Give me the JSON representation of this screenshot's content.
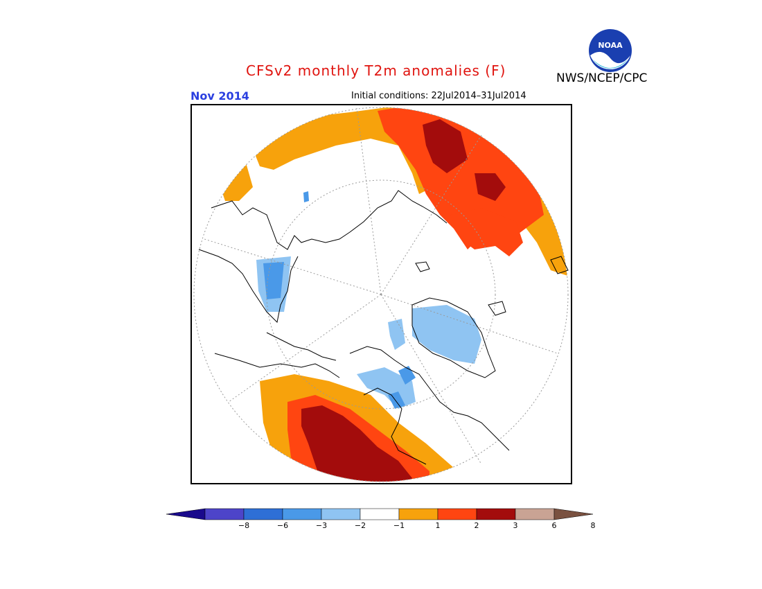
{
  "header": {
    "title": "CFSv2 monthly T2m anomalies (F)",
    "credit": "NWS/NCEP/CPC",
    "month": "Nov 2014",
    "initial_conditions": "Initial conditions: 22Jul2014–31Jul2014",
    "logo_text": "NOAA"
  },
  "colorbar": {
    "ticks": [
      "−8",
      "−6",
      "−3",
      "−2",
      "−1",
      "1",
      "2",
      "3",
      "6",
      "8"
    ],
    "colors": [
      "#1a0a8c",
      "#4d44c9",
      "#2e6fd6",
      "#4a99e8",
      "#8fc4f2",
      "#ffffff",
      "#f7a20c",
      "#ff4511",
      "#a30c0c",
      "#c9a394",
      "#7a5140"
    ]
  },
  "map": {
    "projection": "polar stereographic, North Pole",
    "colors": {
      "land_outline": "#000000",
      "grid": "#999999",
      "frame": "#000000"
    }
  }
}
